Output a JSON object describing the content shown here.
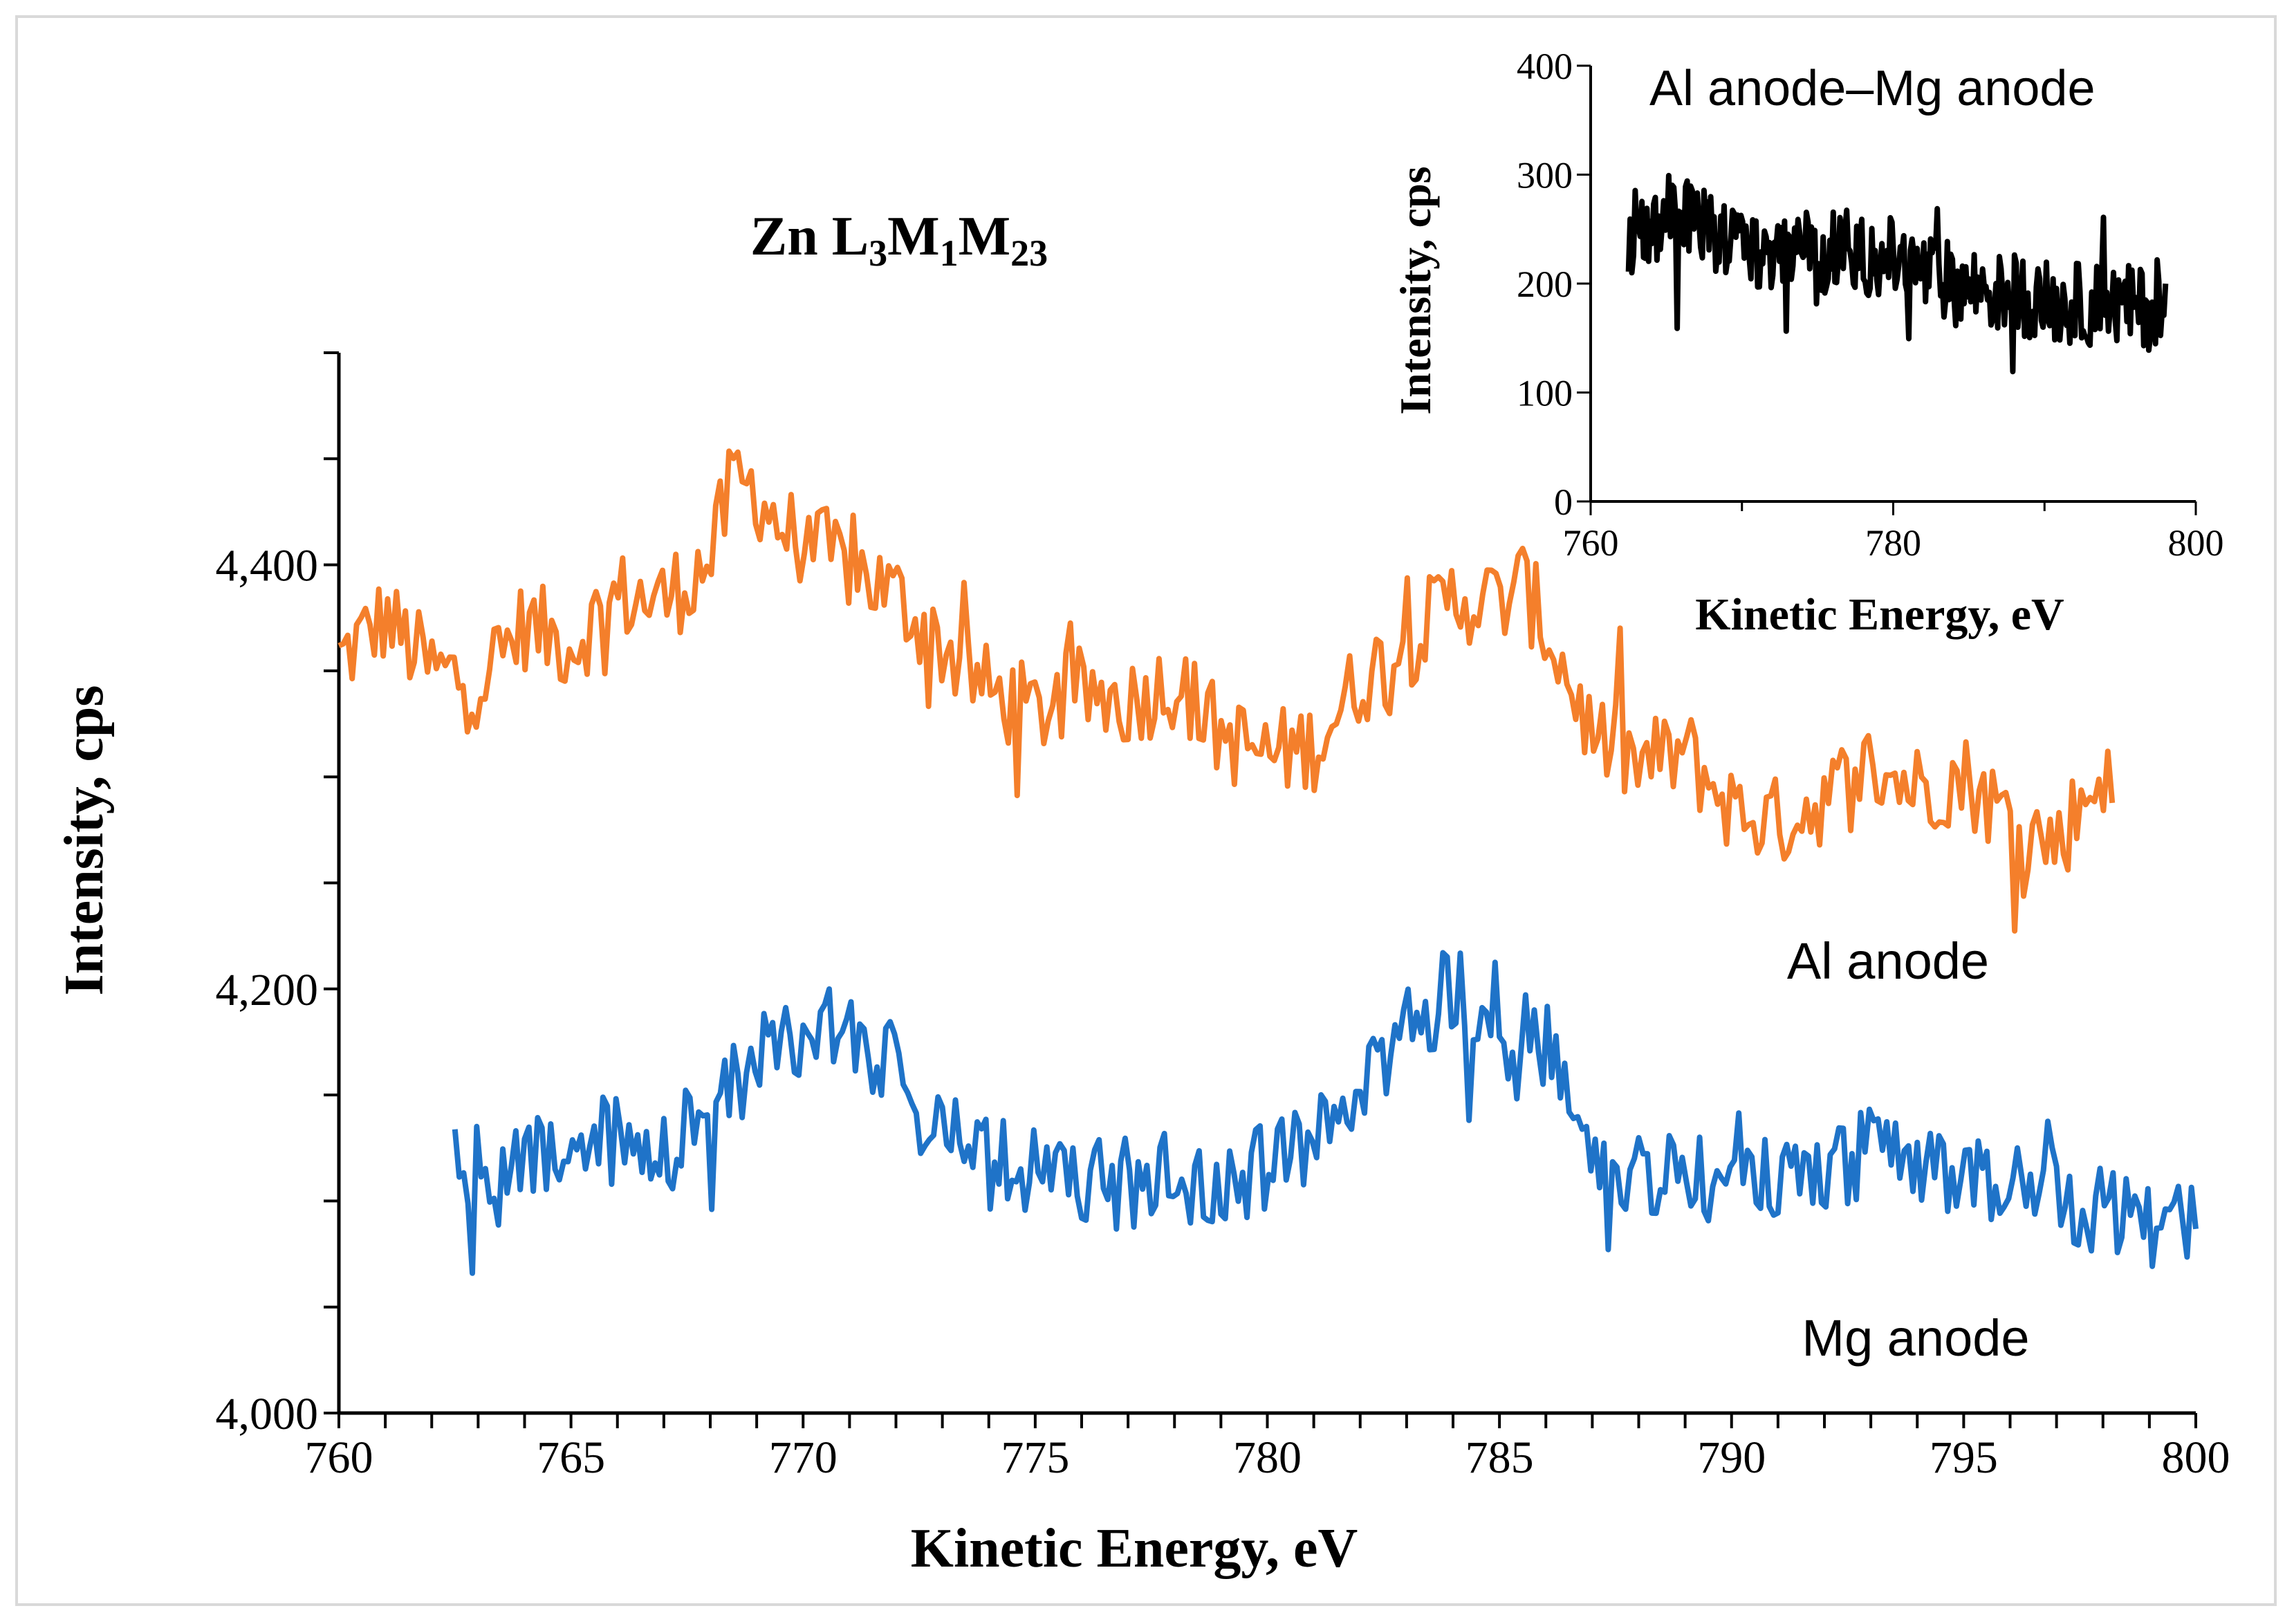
{
  "chart_data": [
    {
      "type": "line",
      "title_parts": [
        "Zn L",
        "3",
        "M",
        "1",
        "M",
        "23"
      ],
      "xlabel": "Kinetic Energy, eV",
      "ylabel": "Intensity, cps",
      "xlim": [
        760,
        800
      ],
      "ylim": [
        4000,
        4500
      ],
      "x_ticks": [
        "760",
        "765",
        "770",
        "775",
        "780",
        "785",
        "790",
        "795",
        "800"
      ],
      "y_ticks": [
        "4,000",
        "4,200",
        "4,400"
      ],
      "colors": {
        "al": "#f47f2b",
        "mg": "#1f73c8",
        "axis": "#000000"
      },
      "series": [
        {
          "name": "Al anode",
          "x": [
            760,
            761,
            762,
            763,
            764,
            765,
            766,
            767,
            768,
            768.5,
            769,
            769.5,
            770,
            771,
            772,
            773,
            774,
            775,
            776,
            777,
            778,
            779,
            780,
            781,
            782,
            783,
            784,
            785,
            785.5,
            786,
            787,
            788,
            789,
            790,
            791,
            792,
            793,
            794,
            795,
            796,
            797,
            798,
            798.2
          ],
          "y": [
            4355,
            4375,
            4350,
            4345,
            4372,
            4362,
            4385,
            4383,
            4402,
            4440,
            4435,
            4418,
            4410,
            4400,
            4385,
            4362,
            4340,
            4330,
            4340,
            4335,
            4345,
            4320,
            4310,
            4315,
            4345,
            4362,
            4385,
            4382,
            4390,
            4370,
            4320,
            4305,
            4312,
            4285,
            4278,
            4290,
            4305,
            4295,
            4300,
            4280,
            4268,
            4305,
            4285
          ]
        },
        {
          "name": "Mg anode",
          "x": [
            762.5,
            763,
            764,
            765,
            766,
            767,
            768,
            769,
            770,
            770.5,
            771,
            772,
            773,
            774,
            775,
            776,
            777,
            778,
            779,
            780,
            781,
            782,
            783,
            784,
            785,
            786,
            787,
            788,
            789,
            790,
            791,
            792,
            793,
            794,
            795,
            796,
            797,
            798,
            799,
            800
          ],
          "y": [
            4125,
            4095,
            4115,
            4125,
            4130,
            4120,
            4145,
            4168,
            4180,
            4188,
            4182,
            4160,
            4130,
            4118,
            4112,
            4110,
            4108,
            4112,
            4110,
            4115,
            4125,
            4150,
            4180,
            4200,
            4192,
            4165,
            4128,
            4110,
            4112,
            4105,
            4110,
            4118,
            4122,
            4120,
            4115,
            4108,
            4103,
            4095,
            4085,
            4090
          ]
        }
      ]
    },
    {
      "type": "line",
      "title": "Al anode–Mg anode",
      "xlabel": "Kinetic Energy, eV",
      "ylabel": "Intensity, cps",
      "xlim": [
        760,
        800
      ],
      "ylim": [
        0,
        400
      ],
      "x_ticks": [
        "760",
        "780",
        "800"
      ],
      "y_ticks": [
        "0",
        "100",
        "200",
        "300",
        "400"
      ],
      "color": "#000000",
      "series": [
        {
          "name": "Al anode–Mg anode",
          "x": [
            762.5,
            763,
            764,
            765,
            766,
            767,
            768,
            769,
            770,
            771,
            772,
            773,
            774,
            775,
            776,
            777,
            778,
            779,
            780,
            781,
            782,
            783,
            784,
            785,
            786,
            787,
            788,
            789,
            790,
            791,
            792,
            793,
            794,
            795,
            796,
            797,
            798
          ],
          "y": [
            230,
            255,
            250,
            262,
            268,
            260,
            245,
            248,
            235,
            225,
            230,
            235,
            232,
            228,
            230,
            232,
            225,
            230,
            222,
            215,
            210,
            205,
            200,
            195,
            198,
            190,
            192,
            188,
            185,
            180,
            182,
            180,
            183,
            178,
            180,
            176,
            172
          ]
        }
      ]
    }
  ]
}
